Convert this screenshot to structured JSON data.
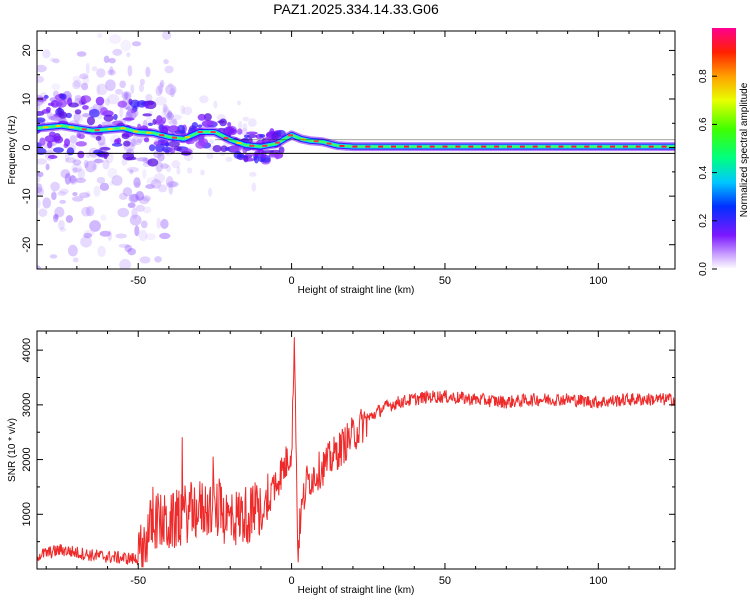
{
  "title": "PAZ1.2025.334.14.33.G06",
  "chart_data": [
    {
      "type": "heatmap",
      "xlabel": "Height of straight line (km)",
      "ylabel": "Frequency (Hz)",
      "xlim": [
        -83,
        125
      ],
      "ylim": [
        -25,
        24
      ],
      "xticks": [
        -50,
        0,
        50,
        100
      ],
      "yticks": [
        -20,
        -10,
        0,
        10,
        20
      ],
      "colorbar": {
        "label": "Normalized spectral amplitude",
        "range": [
          0,
          1
        ],
        "ticks": [
          "0.0",
          "0.2",
          "0.4",
          "0.6",
          "0.8"
        ],
        "tick_values": [
          0,
          0.2,
          0.4,
          0.6,
          0.8
        ]
      },
      "ridge": {
        "x": [
          -83,
          -75,
          -65,
          -55,
          -50,
          -45,
          -40,
          -35,
          -30,
          -25,
          -20,
          -15,
          -10,
          -5,
          0,
          3,
          6,
          10,
          15,
          20,
          40,
          60,
          80,
          100,
          125
        ],
        "freq_hz": [
          4,
          4.5,
          3.5,
          4,
          3.2,
          3,
          2.2,
          1.8,
          3.2,
          3.2,
          1.6,
          0.5,
          0.2,
          0.8,
          2.6,
          1.8,
          1.4,
          1.2,
          0.4,
          0.2,
          0.2,
          0.2,
          0.2,
          0.2,
          0.2
        ]
      }
    },
    {
      "type": "line",
      "xlabel": "Height of straight line (km)",
      "ylabel": "SNR (10 * v/v)",
      "xlim": [
        -83,
        125
      ],
      "ylim": [
        0,
        4350
      ],
      "xticks": [
        -50,
        0,
        50,
        100
      ],
      "yticks": [
        1000,
        2000,
        3000,
        4000
      ],
      "color": "#ee2a2a",
      "series": [
        {
          "name": "SNR",
          "x": [
            -83,
            -75,
            -65,
            -55,
            -50,
            -45,
            -40,
            -35,
            -30,
            -25,
            -20,
            -15,
            -10,
            -5,
            -2,
            0,
            1,
            2,
            3,
            5,
            10,
            15,
            20,
            25,
            30,
            35,
            40,
            45,
            50,
            60,
            70,
            80,
            90,
            100,
            110,
            125
          ],
          "values": [
            250,
            350,
            250,
            200,
            180,
            900,
            800,
            1000,
            1100,
            1100,
            900,
            1000,
            1000,
            1600,
            1900,
            2200,
            4200,
            300,
            1000,
            1600,
            1850,
            2150,
            2450,
            2750,
            2950,
            3050,
            3100,
            3150,
            3150,
            3100,
            3050,
            3100,
            3100,
            3050,
            3100,
            3100
          ]
        }
      ]
    }
  ]
}
